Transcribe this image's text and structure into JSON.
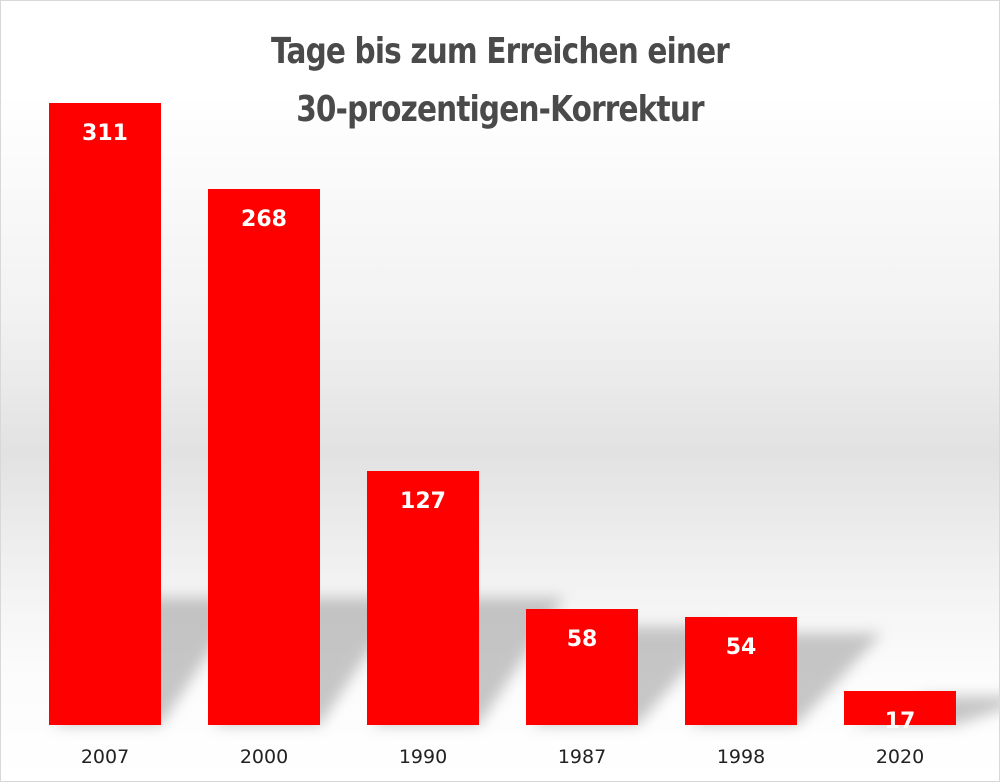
{
  "chart_data": {
    "type": "bar",
    "title_lines": [
      "Tage bis zum Erreichen einer",
      "30-prozentigen-Korrektur"
    ],
    "categories": [
      "2007",
      "2000",
      "1990",
      "1987",
      "1998",
      "2020"
    ],
    "values": [
      311,
      268,
      127,
      58,
      54,
      17
    ],
    "data_labels": [
      "311",
      "268",
      "127",
      "58",
      "54",
      "17"
    ],
    "xlabel": "",
    "ylabel": "",
    "ylim": [
      0,
      311
    ],
    "grid": false,
    "legend": "none",
    "colors": {
      "bar": "#ff0000",
      "label": "#ffffff",
      "title": "#4a4a4a",
      "tick": "#222222",
      "shadow": "#9a9a9a"
    }
  }
}
